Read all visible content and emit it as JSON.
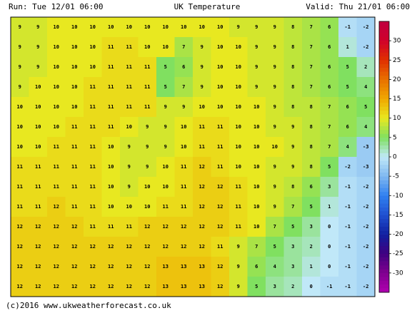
{
  "header": {
    "run": "Run: Tue 12/01 06:00",
    "title": "UK Temperature",
    "valid": "Valid: Thu 21/01 06:00"
  },
  "footer": "(c)2016 www.ukweatherforecast.co.uk",
  "colorbar": {
    "lim": [
      -35,
      35
    ],
    "ticks": [
      30,
      25,
      20,
      15,
      10,
      5,
      0,
      -5,
      -10,
      -15,
      -20,
      -25,
      -30
    ],
    "colors": [
      "#b000b0",
      "#800090",
      "#400080",
      "#1020a0",
      "#2050d0",
      "#3080f0",
      "#80b8f0",
      "#c0e8f8",
      "#80e060",
      "#e8e820",
      "#f0a800",
      "#e87000",
      "#e03000",
      "#d0002a",
      "#c00040"
    ]
  },
  "grid": [
    [
      9,
      9,
      10,
      10,
      10,
      10,
      10,
      10,
      10,
      10,
      10,
      10,
      9,
      9,
      9,
      8,
      7,
      6,
      -1,
      -2
    ],
    [
      9,
      9,
      10,
      10,
      10,
      11,
      11,
      10,
      10,
      7,
      9,
      10,
      10,
      9,
      9,
      8,
      7,
      6,
      1,
      -2
    ],
    [
      9,
      9,
      10,
      10,
      10,
      11,
      11,
      11,
      5,
      6,
      9,
      10,
      10,
      9,
      9,
      8,
      7,
      6,
      5,
      2
    ],
    [
      9,
      10,
      10,
      10,
      11,
      11,
      11,
      11,
      5,
      7,
      9,
      10,
      10,
      9,
      9,
      8,
      7,
      6,
      5,
      4
    ],
    [
      10,
      10,
      10,
      10,
      11,
      11,
      11,
      11,
      9,
      9,
      10,
      10,
      10,
      10,
      9,
      8,
      8,
      7,
      6,
      5
    ],
    [
      10,
      10,
      10,
      11,
      11,
      11,
      10,
      9,
      9,
      10,
      11,
      11,
      10,
      10,
      9,
      9,
      8,
      7,
      6,
      4
    ],
    [
      10,
      10,
      11,
      11,
      11,
      10,
      9,
      9,
      9,
      10,
      11,
      11,
      10,
      10,
      10,
      9,
      8,
      7,
      4,
      -3
    ],
    [
      11,
      11,
      11,
      11,
      11,
      10,
      9,
      9,
      10,
      11,
      12,
      11,
      10,
      10,
      9,
      9,
      8,
      5,
      -2,
      -3
    ],
    [
      11,
      11,
      11,
      11,
      11,
      10,
      9,
      10,
      10,
      11,
      12,
      12,
      11,
      10,
      9,
      8,
      6,
      3,
      -1,
      -2
    ],
    [
      11,
      11,
      12,
      11,
      11,
      10,
      10,
      10,
      11,
      11,
      12,
      12,
      11,
      10,
      9,
      7,
      5,
      1,
      -1,
      -2
    ],
    [
      12,
      12,
      12,
      12,
      11,
      11,
      11,
      12,
      12,
      12,
      12,
      12,
      11,
      10,
      7,
      5,
      3,
      0,
      -1,
      -2
    ],
    [
      12,
      12,
      12,
      12,
      12,
      12,
      12,
      12,
      12,
      12,
      12,
      11,
      9,
      7,
      5,
      3,
      2,
      0,
      -1,
      -2
    ],
    [
      12,
      12,
      12,
      12,
      12,
      12,
      12,
      12,
      13,
      13,
      13,
      12,
      9,
      6,
      4,
      3,
      1,
      0,
      -1,
      -2
    ],
    [
      12,
      12,
      12,
      12,
      12,
      12,
      12,
      12,
      13,
      13,
      13,
      12,
      9,
      5,
      3,
      2,
      0,
      -1,
      -1,
      -2
    ]
  ]
}
